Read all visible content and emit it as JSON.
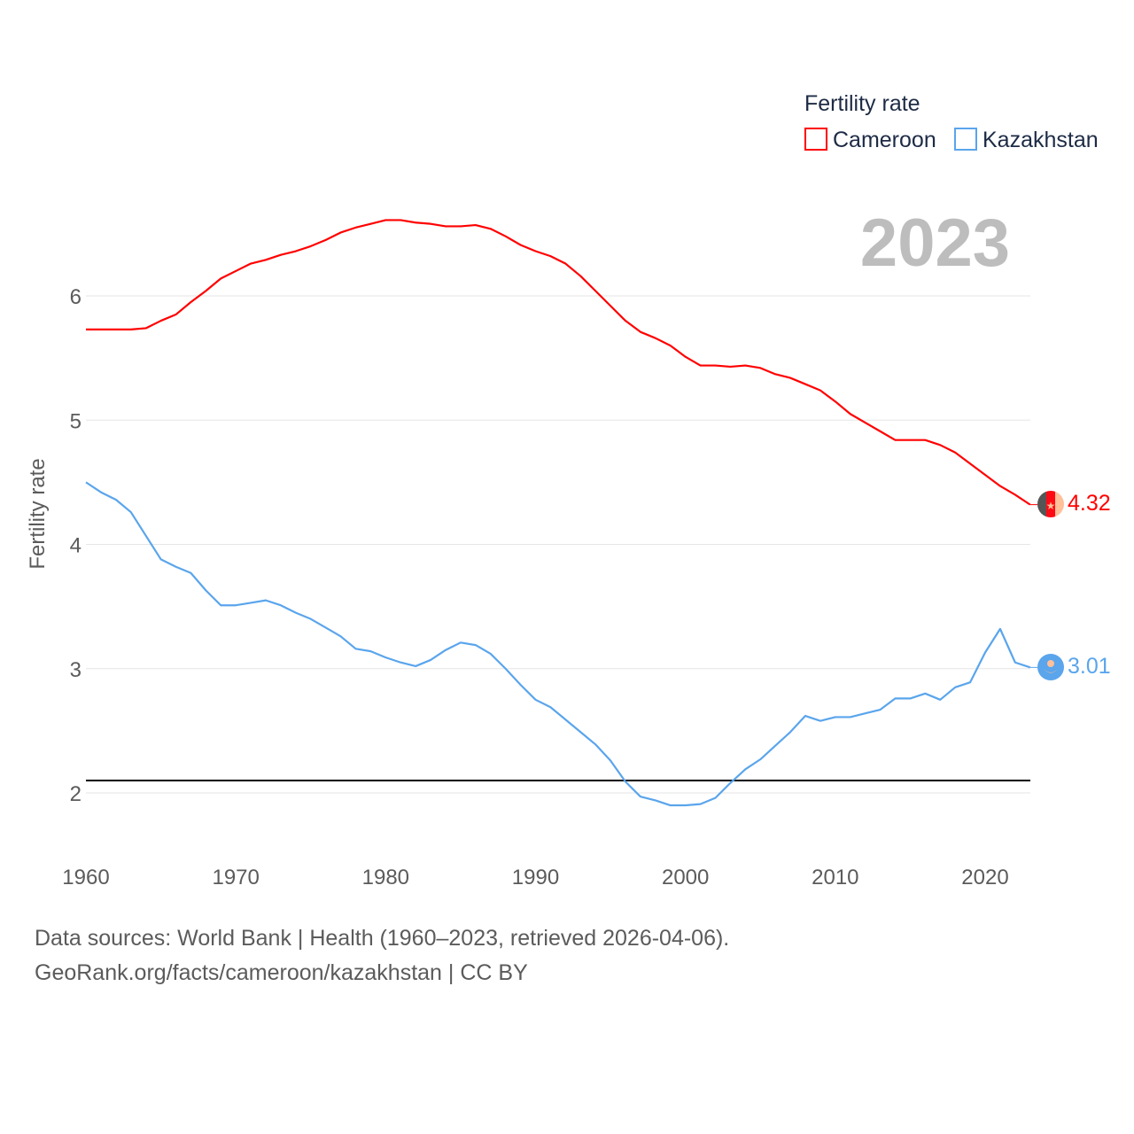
{
  "chart_data": {
    "type": "line",
    "title": "",
    "xlabel": "",
    "ylabel": "Fertility rate",
    "xlim": [
      1960,
      2023
    ],
    "ylim": [
      1.5,
      6.8
    ],
    "x_ticks": [
      1960,
      1970,
      1980,
      1990,
      2000,
      2010,
      2020
    ],
    "y_ticks": [
      2,
      3,
      4,
      5,
      6
    ],
    "grid": true,
    "legend": {
      "title": "Fertility rate",
      "placement": "top-right"
    },
    "year_label": "2023",
    "reference_line": {
      "value": 2.1,
      "color": "#000000"
    },
    "x": [
      1960,
      1961,
      1962,
      1963,
      1964,
      1965,
      1966,
      1967,
      1968,
      1969,
      1970,
      1971,
      1972,
      1973,
      1974,
      1975,
      1976,
      1977,
      1978,
      1979,
      1980,
      1981,
      1982,
      1983,
      1984,
      1985,
      1986,
      1987,
      1988,
      1989,
      1990,
      1991,
      1992,
      1993,
      1994,
      1995,
      1996,
      1997,
      1998,
      1999,
      2000,
      2001,
      2002,
      2003,
      2004,
      2005,
      2006,
      2007,
      2008,
      2009,
      2010,
      2011,
      2012,
      2013,
      2014,
      2015,
      2016,
      2017,
      2018,
      2019,
      2020,
      2021,
      2022,
      2023
    ],
    "series": [
      {
        "name": "Cameroon",
        "color": "#ff0000",
        "end_label": "4.32",
        "values": [
          5.73,
          5.73,
          5.73,
          5.73,
          5.74,
          5.8,
          5.85,
          5.95,
          6.04,
          6.14,
          6.2,
          6.26,
          6.29,
          6.33,
          6.36,
          6.4,
          6.45,
          6.51,
          6.55,
          6.58,
          6.61,
          6.61,
          6.59,
          6.58,
          6.56,
          6.56,
          6.57,
          6.54,
          6.48,
          6.41,
          6.36,
          6.32,
          6.26,
          6.16,
          6.04,
          5.92,
          5.8,
          5.71,
          5.66,
          5.6,
          5.51,
          5.44,
          5.44,
          5.43,
          5.44,
          5.42,
          5.37,
          5.34,
          5.29,
          5.24,
          5.15,
          5.05,
          4.98,
          4.91,
          4.84,
          4.84,
          4.84,
          4.8,
          4.74,
          4.65,
          4.56,
          4.47,
          4.4,
          4.32
        ]
      },
      {
        "name": "Kazakhstan",
        "color": "#5aa5ec",
        "end_label": "3.01",
        "values": [
          4.5,
          4.42,
          4.36,
          4.26,
          4.07,
          3.88,
          3.82,
          3.77,
          3.63,
          3.51,
          3.51,
          3.53,
          3.55,
          3.51,
          3.45,
          3.4,
          3.33,
          3.26,
          3.16,
          3.14,
          3.09,
          3.05,
          3.02,
          3.07,
          3.15,
          3.21,
          3.19,
          3.12,
          3.0,
          2.87,
          2.75,
          2.69,
          2.59,
          2.49,
          2.39,
          2.26,
          2.09,
          1.97,
          1.94,
          1.9,
          1.9,
          1.91,
          1.96,
          2.08,
          2.19,
          2.27,
          2.38,
          2.49,
          2.62,
          2.58,
          2.61,
          2.61,
          2.64,
          2.67,
          2.76,
          2.76,
          2.8,
          2.75,
          2.85,
          2.89,
          3.13,
          3.32,
          3.05,
          3.01
        ]
      }
    ]
  },
  "footer": {
    "source": "Data sources: World Bank | Health (1960–2023, retrieved 2026-04-06).",
    "credit": "GeoRank.org/facts/cameroon/kazakhstan | CC BY"
  }
}
